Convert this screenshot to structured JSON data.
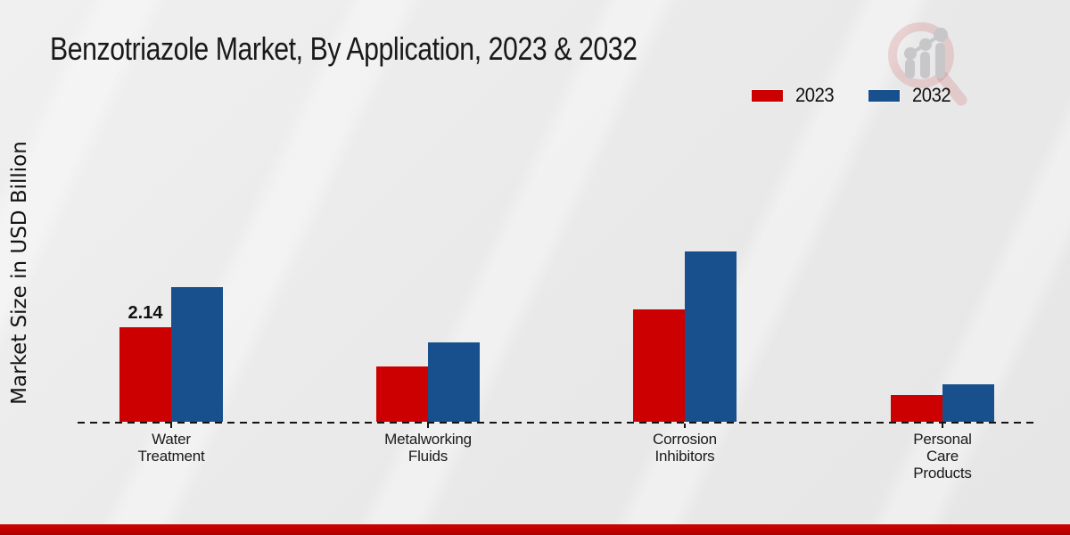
{
  "chart_data": {
    "type": "bar",
    "title": "Benzotriazole Market, By Application, 2023 & 2032",
    "ylabel": "Market Size in USD Billion",
    "xlabel": "",
    "categories": [
      "Water\nTreatment",
      "Metalworking\nFluids",
      "Corrosion\nInhibitors",
      "Personal\nCare\nProducts"
    ],
    "series": [
      {
        "name": "2023",
        "color": "#cc0000",
        "values": [
          2.14,
          1.25,
          2.55,
          0.6
        ],
        "labels": [
          "2.14",
          null,
          null,
          null
        ]
      },
      {
        "name": "2032",
        "color": "#17508c",
        "values": [
          3.05,
          1.8,
          3.85,
          0.85
        ],
        "labels": [
          null,
          null,
          null,
          null
        ]
      }
    ],
    "ylim": [
      0,
      4.2
    ],
    "grid": false,
    "legend_position": "top-right",
    "baseline_style": "dashed",
    "annotated_value": "2.14"
  },
  "branding": {
    "watermark": "magnifier-bar-chart-logo",
    "footer_color": "#c00000"
  }
}
